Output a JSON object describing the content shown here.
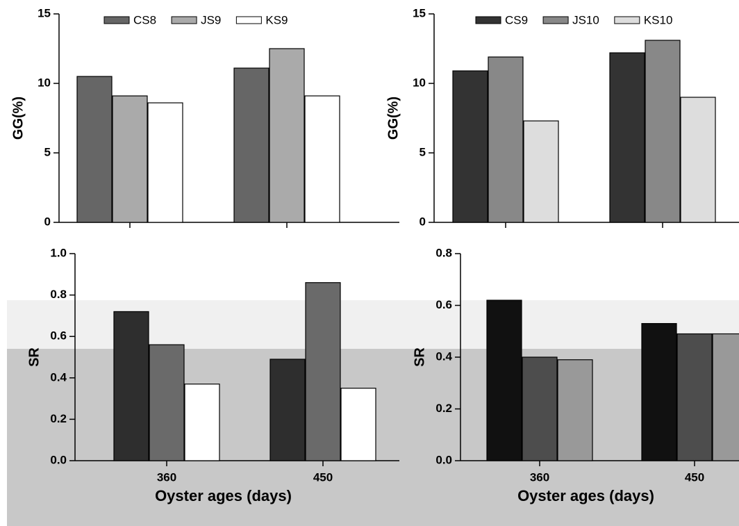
{
  "chart_data": [
    {
      "type": "bar",
      "ylabel": "GG(%)",
      "categories": [
        null,
        null
      ],
      "ylim": [
        0,
        15
      ],
      "yticks": [
        0,
        5,
        10,
        15
      ],
      "legend": "top",
      "series": [
        {
          "name": "CS8",
          "color": "#666666",
          "values": [
            10.5,
            11.1
          ]
        },
        {
          "name": "JS9",
          "color": "#aaaaaa",
          "values": [
            9.1,
            12.5
          ]
        },
        {
          "name": "KS9",
          "color": "#ffffff",
          "values": [
            8.6,
            9.1
          ]
        }
      ]
    },
    {
      "type": "bar",
      "ylabel": "GG(%)",
      "categories": [
        null,
        null
      ],
      "ylim": [
        0,
        15
      ],
      "yticks": [
        0,
        5,
        10,
        15
      ],
      "legend": "top",
      "series": [
        {
          "name": "CS9",
          "color": "#333333",
          "values": [
            10.9,
            12.2
          ]
        },
        {
          "name": "JS10",
          "color": "#888888",
          "values": [
            11.9,
            13.1
          ]
        },
        {
          "name": "KS10",
          "color": "#dddddd",
          "values": [
            7.3,
            9.0
          ]
        }
      ]
    },
    {
      "type": "bar",
      "ylabel": "SR",
      "xlabel": "Oyster ages (days)",
      "categories": [
        "360",
        "450"
      ],
      "ylim": [
        0,
        1
      ],
      "yticks": [
        {
          "value": 0,
          "label": "0.0"
        },
        0.2,
        0.4,
        0.6,
        0.8,
        {
          "value": 1,
          "label": "1.0"
        }
      ],
      "series": [
        {
          "color": "#2e2e2e",
          "values": [
            0.72,
            0.49
          ]
        },
        {
          "color": "#6a6a6a",
          "values": [
            0.56,
            0.86
          ]
        },
        {
          "color": "#ffffff",
          "values": [
            0.37,
            0.35
          ]
        }
      ]
    },
    {
      "type": "bar",
      "ylabel": "SR",
      "xlabel": "Oyster ages (days)",
      "categories": [
        "360",
        "450"
      ],
      "ylim": [
        0,
        0.8
      ],
      "yticks": [
        {
          "value": 0,
          "label": "0.0"
        },
        0.2,
        0.4,
        0.6,
        0.8
      ],
      "series": [
        {
          "color": "#111111",
          "values": [
            0.62,
            0.53
          ]
        },
        {
          "color": "#4d4d4d",
          "values": [
            0.4,
            0.49
          ]
        },
        {
          "color": "#999999",
          "values": [
            0.39,
            0.49
          ]
        }
      ]
    }
  ]
}
